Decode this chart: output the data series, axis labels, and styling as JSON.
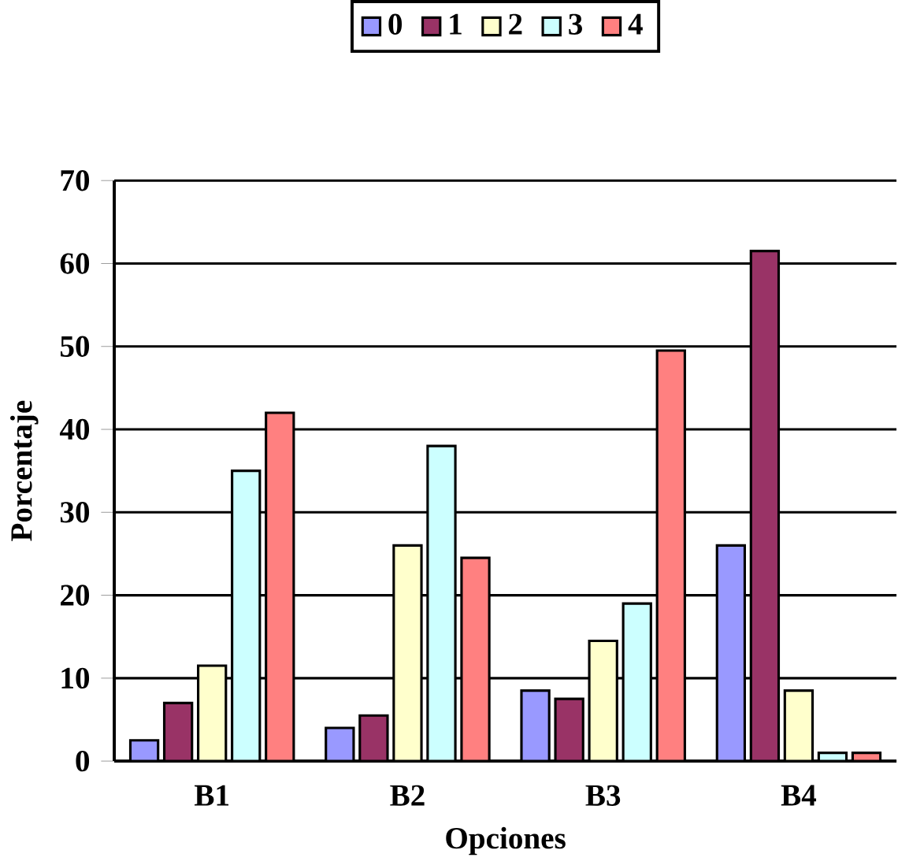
{
  "chart_data": {
    "type": "bar",
    "xlabel": "Opciones",
    "ylabel": "Porcentaje",
    "categories": [
      "B1",
      "B2",
      "B3",
      "B4"
    ],
    "series": [
      {
        "name": "0",
        "color": "#9999ff",
        "values": [
          2.5,
          4,
          8.5,
          26
        ]
      },
      {
        "name": "1",
        "color": "#993366",
        "values": [
          7,
          5.5,
          7.5,
          61.5
        ]
      },
      {
        "name": "2",
        "color": "#ffffcc",
        "values": [
          11.5,
          26,
          14.5,
          8.5
        ]
      },
      {
        "name": "3",
        "color": "#ccffff",
        "values": [
          35,
          38,
          19,
          1
        ]
      },
      {
        "name": "4",
        "color": "#ff8080",
        "values": [
          42,
          24.5,
          49.5,
          1
        ]
      }
    ],
    "ylim": [
      0,
      70
    ],
    "yticks": [
      0,
      10,
      20,
      30,
      40,
      50,
      60,
      70
    ],
    "grid": "y",
    "legend": "top"
  }
}
